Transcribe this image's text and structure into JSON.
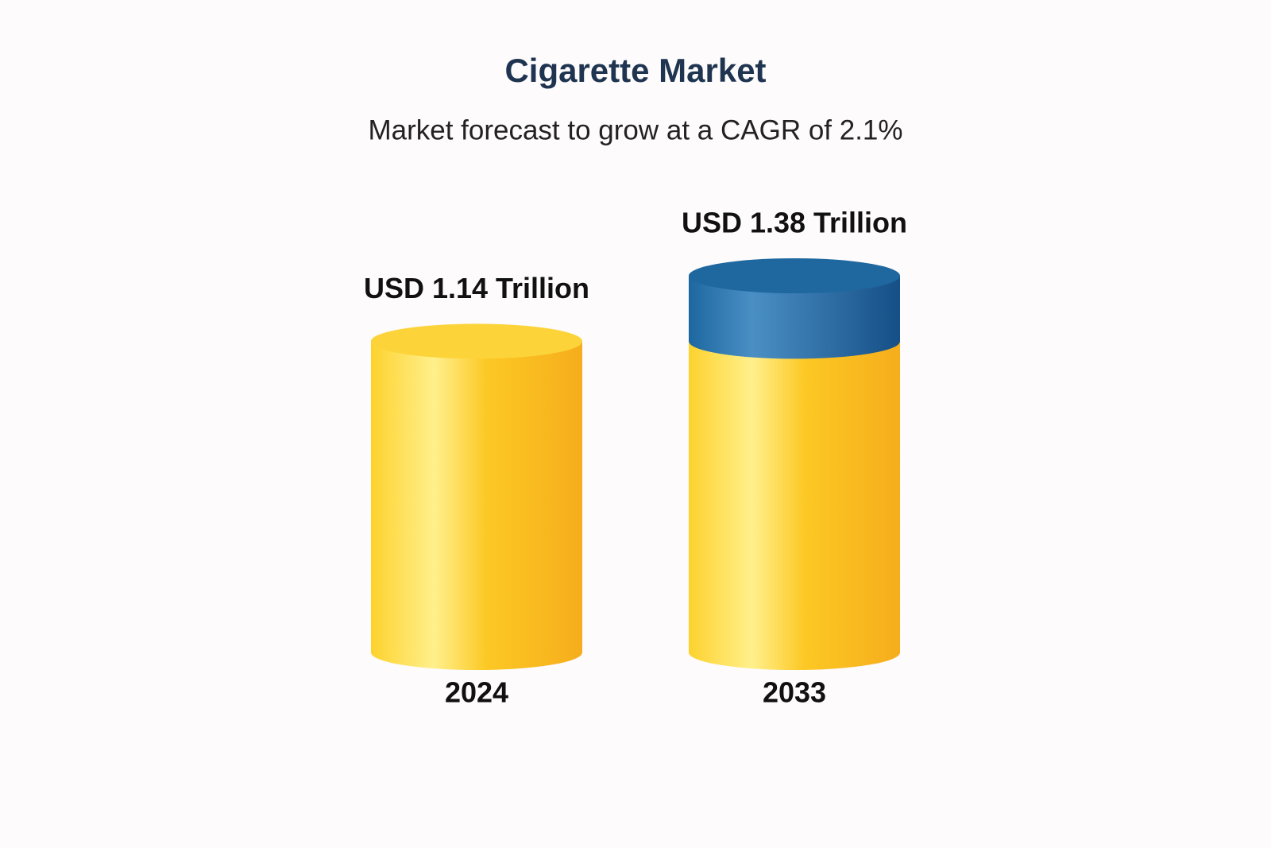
{
  "chart_data": {
    "type": "bar",
    "title": "Cigarette Market",
    "subtitle": "Market forecast to grow at a CAGR of 2.1%",
    "categories": [
      "2024",
      "2033"
    ],
    "values": [
      1.14,
      1.38
    ],
    "value_labels": [
      "USD 1.14 Trillion",
      "USD 1.38 Trillion"
    ],
    "colors": {
      "bar": "#fcc824",
      "growth": "#1d67a0"
    }
  }
}
